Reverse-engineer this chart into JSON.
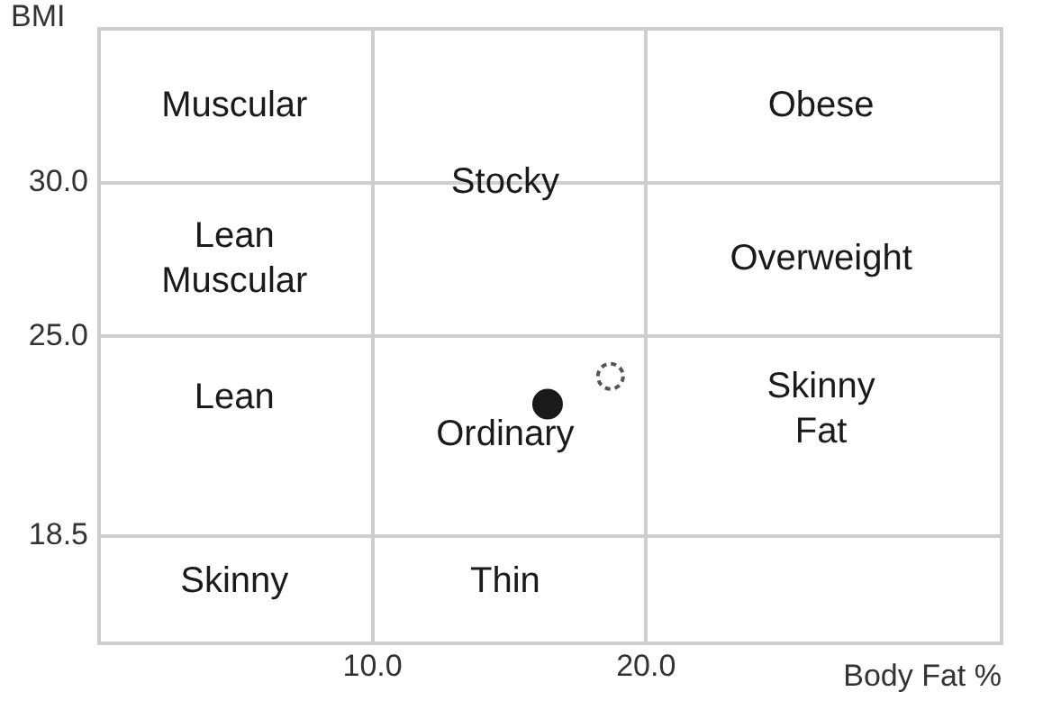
{
  "chart_data": {
    "type": "scatter",
    "xlabel": "Body Fat %",
    "ylabel": "BMI",
    "xlim": [
      0,
      33
    ],
    "xticks": [
      {
        "value": 10,
        "label": "10.0"
      },
      {
        "value": 20,
        "label": "20.0"
      }
    ],
    "ylim": [
      15,
      35
    ],
    "yticks": [
      18.5,
      {
        "value": 25,
        "label": "25.0"
      },
      {
        "value": 30,
        "label": "30.0"
      }
    ],
    "grid": true,
    "legend": false,
    "marker": "circle",
    "series": [
      {
        "color": "#1a1a1a",
        "x": [
          16.4
        ],
        "values": [
          22.8
        ]
      },
      {
        "color": "#555555",
        "x": [
          18.7
        ],
        "values": [
          23.7
        ],
        "line_style": "dashed"
      }
    ],
    "annotations": [
      "Muscular",
      "Lean\nMuscular",
      "Lean",
      "Skinny",
      "Stocky",
      "Ordinary",
      "Thin",
      "Obese",
      "Overweight",
      "Skinny\nFat"
    ]
  }
}
